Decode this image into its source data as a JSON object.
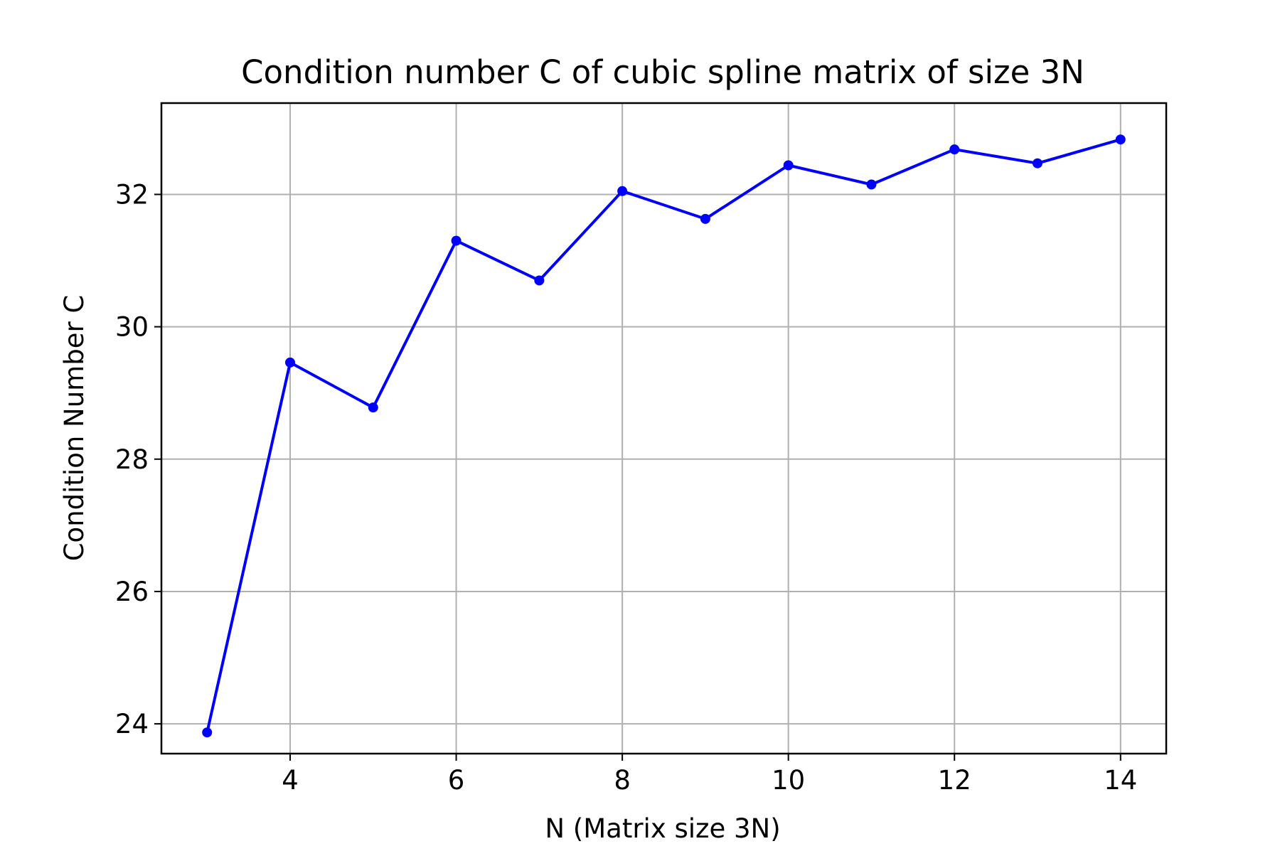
{
  "chart_data": {
    "type": "line",
    "title": "Condition number C of cubic spline matrix of size 3N",
    "xlabel": "N (Matrix size 3N)",
    "ylabel": "Condition Number C",
    "xlim": [
      2.45,
      14.55
    ],
    "ylim": [
      23.55,
      33.38
    ],
    "x_ticks": [
      4,
      6,
      8,
      10,
      12,
      14
    ],
    "x_tick_labels": [
      "4",
      "6",
      "8",
      "10",
      "12",
      "14"
    ],
    "y_ticks": [
      24,
      26,
      28,
      30,
      32
    ],
    "y_tick_labels": [
      "24",
      "26",
      "28",
      "30",
      "32"
    ],
    "grid": true,
    "legend": "none",
    "series": [
      {
        "color": "#0000ff",
        "marker": "circle",
        "x": [
          3,
          4,
          5,
          6,
          7,
          8,
          9,
          10,
          11,
          12,
          13,
          14
        ],
        "y": [
          23.87,
          29.46,
          28.78,
          31.3,
          30.7,
          32.05,
          31.63,
          32.44,
          32.15,
          32.68,
          32.47,
          32.83
        ]
      }
    ],
    "colors": {
      "line": "#0000ff",
      "grid": "#b0b0b0",
      "axes": "#000000"
    }
  }
}
